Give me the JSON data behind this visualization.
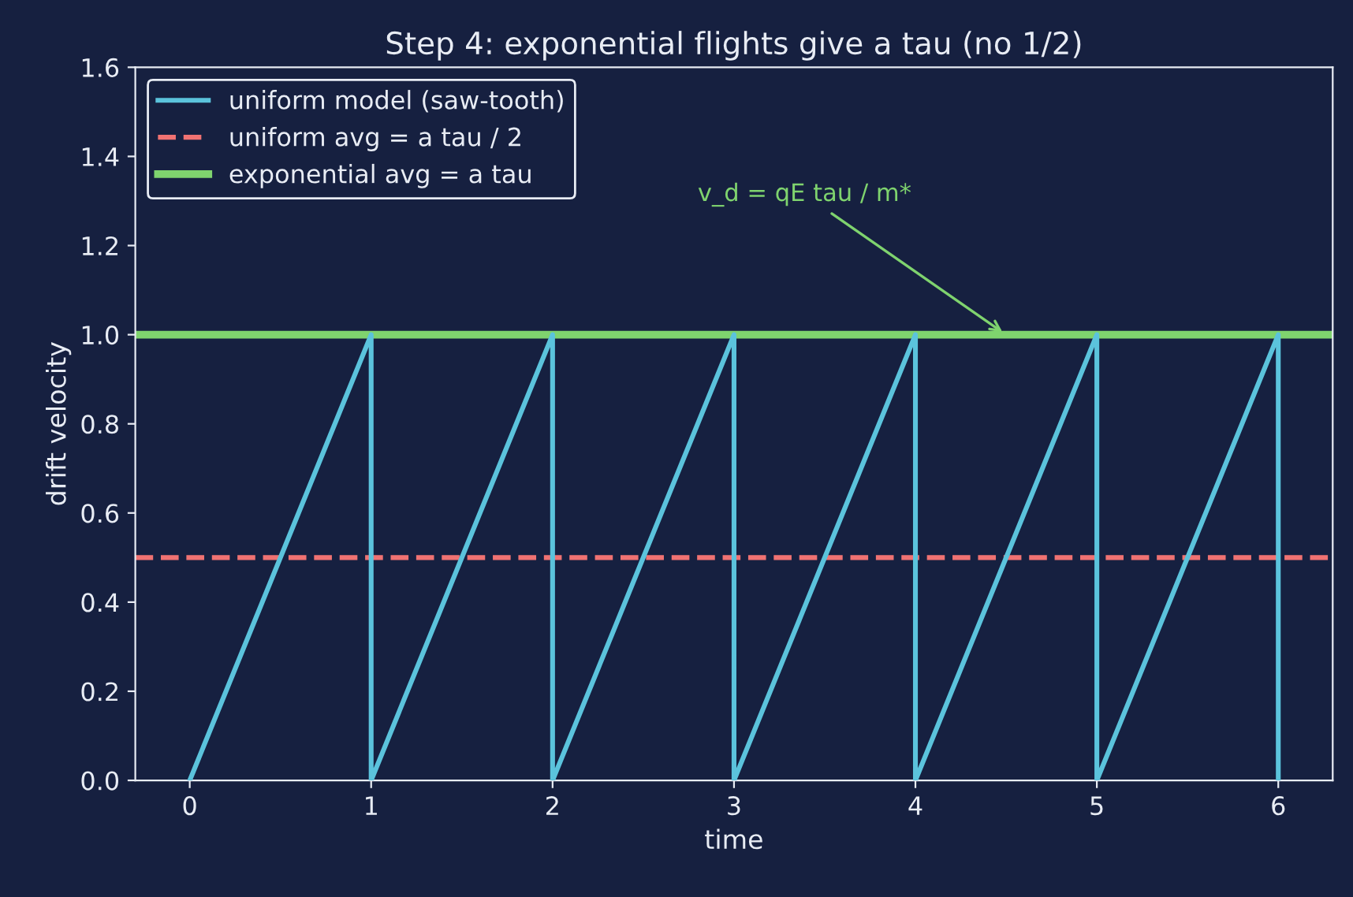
{
  "chart_data": {
    "type": "line",
    "title": "Step 4: exponential flights give a tau (no 1/2)",
    "xlabel": "time",
    "ylabel": "drift velocity",
    "series": [
      {
        "name": "uniform model (saw-tooth)",
        "color": "#5bc3dc",
        "x": [
          0,
          1,
          1,
          2,
          2,
          3,
          3,
          4,
          4,
          5,
          5,
          6,
          6
        ],
        "values": [
          0,
          1,
          0,
          1,
          0,
          1,
          0,
          1,
          0,
          1,
          0,
          1,
          0
        ]
      }
    ],
    "ref_lines": [
      {
        "axis": "y",
        "value": 0.5,
        "label": "uniform avg = a tau / 2",
        "color": "#f07272",
        "line_style": "dashed"
      },
      {
        "axis": "y",
        "value": 1.0,
        "label": "exponential avg = a tau",
        "color": "#7fd36e",
        "line_style": "solid"
      }
    ],
    "annotations": [
      {
        "text": "v_d = qE tau / m*",
        "x": 4.5,
        "y": 1.0
      }
    ],
    "xlim": [
      -0.3,
      6.3
    ],
    "xticks": [
      0,
      1,
      2,
      3,
      4,
      5,
      6
    ],
    "ylim": [
      0,
      1.6
    ],
    "yticks": [
      {
        "value": 0,
        "label": "0.0"
      },
      {
        "value": 0.2,
        "label": "0.2"
      },
      {
        "value": 0.4,
        "label": "0.4"
      },
      {
        "value": 0.6,
        "label": "0.6"
      },
      {
        "value": 0.8,
        "label": "0.8"
      },
      {
        "value": 1.0,
        "label": "1.0"
      },
      {
        "value": 1.2,
        "label": "1.2"
      },
      {
        "value": 1.4,
        "label": "1.4"
      },
      {
        "value": 1.6,
        "label": "1.6"
      }
    ],
    "grid": false,
    "legend": "top left",
    "line_style": "solid",
    "marker": "none"
  }
}
